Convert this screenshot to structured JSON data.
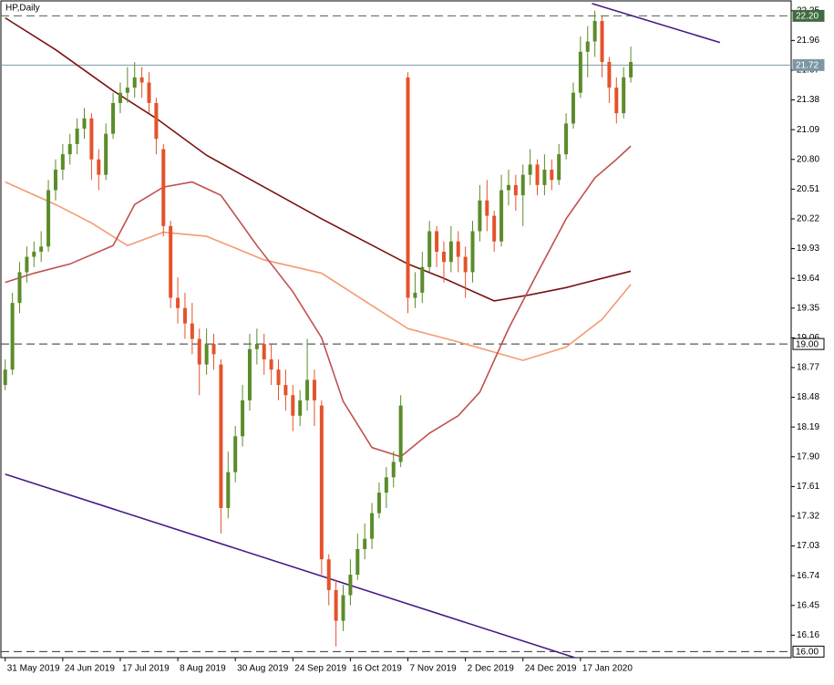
{
  "chart_data": {
    "type": "candlestick",
    "title": "HP,Daily",
    "xlim": [
      -0.6,
      109.3
    ],
    "ylim": [
      15.95,
      22.31
    ],
    "xticks": [
      {
        "value": 0,
        "label": "31 May 2019"
      },
      {
        "value": 8,
        "label": "24 Jun 2019"
      },
      {
        "value": 16,
        "label": "17 Jul 2019"
      },
      {
        "value": 24,
        "label": "8 Aug 2019"
      },
      {
        "value": 32,
        "label": "30 Aug 2019"
      },
      {
        "value": 40,
        "label": "24 Sep 2019"
      },
      {
        "value": 48,
        "label": "16 Oct 2019"
      },
      {
        "value": 56,
        "label": "7 Nov 2019"
      },
      {
        "value": 64,
        "label": "2 Dec 2019"
      },
      {
        "value": 72,
        "label": "24 Dec 2019"
      },
      {
        "value": 80,
        "label": "17 Jan 2020"
      }
    ],
    "yticks": [
      22.25,
      21.96,
      21.67,
      21.38,
      21.09,
      {
        "value": 20.8,
        "label": "20.80"
      },
      20.51,
      20.22,
      19.93,
      19.64,
      19.35,
      19.06,
      18.77,
      18.48,
      18.19,
      {
        "value": 17.9,
        "label": "17.90"
      },
      17.61,
      17.32,
      17.03,
      16.74,
      16.45,
      16.16
    ],
    "up_color": "#5b8c2a",
    "down_color": "#e4532b",
    "open": [
      18.6,
      18.75,
      19.4,
      19.7,
      19.85,
      19.9,
      19.95,
      20.5,
      20.7,
      20.85,
      20.95,
      21.1,
      21.2,
      20.8,
      20.65,
      21.05,
      21.35,
      21.45,
      21.5,
      21.6,
      21.55,
      21.35,
      20.9,
      20.15,
      19.45,
      19.35,
      19.2,
      19.05,
      18.8,
      19.0,
      18.8,
      17.4,
      17.75,
      18.1,
      18.45,
      18.95,
      19.0,
      18.85,
      18.75,
      18.6,
      18.5,
      18.3,
      18.45,
      18.65,
      18.4,
      16.9,
      16.6,
      16.3,
      16.55,
      16.75,
      17.0,
      17.1,
      17.35,
      17.55,
      17.7,
      17.85,
      21.6,
      19.45,
      19.5,
      19.75,
      20.1,
      19.9,
      19.8,
      20.0,
      19.85,
      19.7,
      20.1,
      20.4,
      20.25,
      20.0,
      20.5,
      20.55,
      20.45,
      20.65,
      20.75,
      20.55,
      20.7,
      20.6,
      20.85,
      21.15,
      21.45,
      21.85,
      21.95,
      22.15,
      21.75,
      21.5,
      21.25,
      21.6
    ],
    "high": [
      18.85,
      19.5,
      19.8,
      19.95,
      20.0,
      20.1,
      20.6,
      20.8,
      20.95,
      21.05,
      21.2,
      21.3,
      21.25,
      20.9,
      21.15,
      21.45,
      21.55,
      21.7,
      21.75,
      21.7,
      21.65,
      21.4,
      20.95,
      20.2,
      19.65,
      19.5,
      19.4,
      19.15,
      19.15,
      19.1,
      18.85,
      17.95,
      18.2,
      18.6,
      19.1,
      19.15,
      19.1,
      19.0,
      18.85,
      18.75,
      18.6,
      18.55,
      19.05,
      18.75,
      18.45,
      16.95,
      16.7,
      16.65,
      16.9,
      17.15,
      17.25,
      17.45,
      17.65,
      17.8,
      17.95,
      18.5,
      21.65,
      19.7,
      19.9,
      20.2,
      20.15,
      20.0,
      20.15,
      20.1,
      19.95,
      20.2,
      20.55,
      20.6,
      20.3,
      20.65,
      20.7,
      20.65,
      20.75,
      20.9,
      20.8,
      20.85,
      20.8,
      20.95,
      21.25,
      21.55,
      22.0,
      22.1,
      22.25,
      22.2,
      21.8,
      21.6,
      21.7,
      21.9
    ],
    "low": [
      18.55,
      18.7,
      19.3,
      19.6,
      19.75,
      19.8,
      19.9,
      20.4,
      20.6,
      20.75,
      20.85,
      21.0,
      20.6,
      20.5,
      20.6,
      21.0,
      21.25,
      21.35,
      21.4,
      21.4,
      21.25,
      20.85,
      20.05,
      19.35,
      19.2,
      19.05,
      18.9,
      18.5,
      18.7,
      18.75,
      17.15,
      17.3,
      17.65,
      18.0,
      18.35,
      18.8,
      18.7,
      18.6,
      18.45,
      18.35,
      18.15,
      18.2,
      18.35,
      18.2,
      16.75,
      16.45,
      16.05,
      16.2,
      16.45,
      16.7,
      16.9,
      17.0,
      17.3,
      17.4,
      17.6,
      17.8,
      19.3,
      19.35,
      19.4,
      19.7,
      19.75,
      19.6,
      19.7,
      19.7,
      19.45,
      19.6,
      20.0,
      20.1,
      19.9,
      19.95,
      20.35,
      20.3,
      20.15,
      20.55,
      20.45,
      20.45,
      20.5,
      20.55,
      20.8,
      21.1,
      21.4,
      21.6,
      21.8,
      21.6,
      21.35,
      21.15,
      21.2,
      21.55
    ],
    "close": [
      18.75,
      19.4,
      19.7,
      19.85,
      19.9,
      19.95,
      20.5,
      20.7,
      20.85,
      20.95,
      21.1,
      21.2,
      20.8,
      20.65,
      21.05,
      21.35,
      21.45,
      21.5,
      21.6,
      21.55,
      21.35,
      21.0,
      20.15,
      19.45,
      19.35,
      19.2,
      19.05,
      18.8,
      19.0,
      18.9,
      17.4,
      17.75,
      18.1,
      18.45,
      18.95,
      19.0,
      18.85,
      18.75,
      18.6,
      18.5,
      18.3,
      18.45,
      18.65,
      18.45,
      16.9,
      16.6,
      16.3,
      16.55,
      16.75,
      17.0,
      17.1,
      17.35,
      17.55,
      17.7,
      17.85,
      18.4,
      19.45,
      19.5,
      19.75,
      20.1,
      19.9,
      19.8,
      20.0,
      19.85,
      19.7,
      20.1,
      20.4,
      20.25,
      20.0,
      20.5,
      20.55,
      20.45,
      20.65,
      20.75,
      20.55,
      20.7,
      20.6,
      20.85,
      21.15,
      21.45,
      21.85,
      21.95,
      22.15,
      21.75,
      21.5,
      21.25,
      21.6,
      21.75
    ],
    "moving_averages": [
      {
        "color": "#7a1212",
        "x": [
          0,
          7,
          15,
          21,
          28,
          36,
          44,
          50,
          56,
          61,
          68,
          73,
          78,
          83,
          87
        ],
        "values": [
          22.18,
          21.87,
          21.47,
          21.2,
          20.84,
          20.53,
          20.22,
          20.0,
          19.78,
          19.64,
          19.42,
          19.48,
          19.55,
          19.64,
          19.71
        ]
      },
      {
        "color": "#f59a72",
        "x": [
          0,
          7,
          12,
          17,
          22,
          28,
          36,
          44,
          50,
          56,
          63,
          72,
          78,
          83,
          87
        ],
        "values": [
          20.58,
          20.36,
          20.18,
          19.96,
          20.09,
          20.05,
          19.82,
          19.69,
          19.42,
          19.15,
          19.02,
          18.84,
          18.97,
          19.24,
          19.58
        ]
      },
      {
        "color": "#c05050",
        "x": [
          0,
          4,
          9,
          15,
          18,
          22,
          26,
          30,
          35,
          40,
          44,
          47,
          51,
          55,
          59,
          63,
          66,
          70,
          74,
          78,
          82,
          85,
          87
        ],
        "values": [
          19.6,
          19.69,
          19.78,
          19.96,
          20.36,
          20.53,
          20.58,
          20.45,
          19.96,
          19.51,
          19.06,
          18.44,
          17.99,
          17.9,
          18.13,
          18.3,
          18.53,
          19.15,
          19.69,
          20.22,
          20.62,
          20.8,
          20.93
        ]
      }
    ],
    "trendlines": [
      {
        "color": "#4b1a8a",
        "x": [
          81.6,
          99.4
        ],
        "values": [
          22.32,
          21.94
        ]
      },
      {
        "color": "#4b1a8a",
        "x": [
          0,
          79.7
        ],
        "values": [
          17.73,
          15.93
        ]
      }
    ],
    "levels": [
      {
        "value": 22.2,
        "label": "22.20",
        "color": "#3f6b3f",
        "dashed": true,
        "box": "#3f6b3f",
        "text_color": "#ffffff"
      },
      {
        "value": 21.72,
        "label": "21.72",
        "color": "#7c97a4",
        "dashed": false,
        "box": "#7c97a4",
        "text_color": "#ffffff"
      },
      {
        "value": 19.0,
        "label": "19.00",
        "color": "#333333",
        "dashed": true,
        "box": "#ffffff",
        "text_color": "#000000"
      },
      {
        "value": 16.0,
        "label": "16.00",
        "color": "#333333",
        "dashed": true,
        "box": "#ffffff",
        "text_color": "#000000"
      }
    ]
  }
}
